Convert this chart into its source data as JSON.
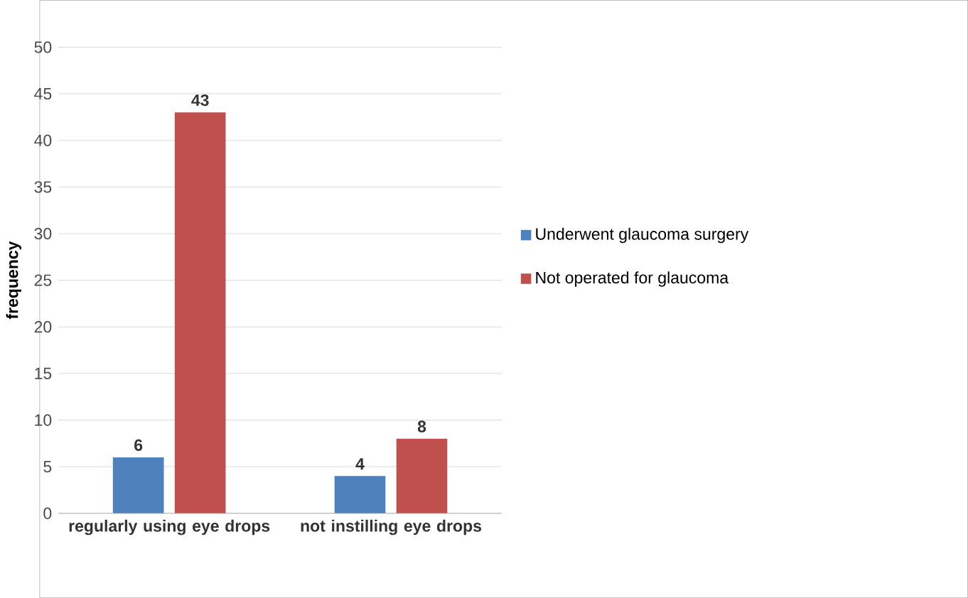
{
  "chart_data": {
    "type": "bar",
    "ylabel": "frequency",
    "categories": [
      "regularly using eye drops",
      "not instilling eye drops"
    ],
    "series": [
      {
        "name": "Underwent glaucoma surgery",
        "color": "#4f81bd",
        "values": [
          6,
          4
        ]
      },
      {
        "name": "Not operated for glaucoma",
        "color": "#c0504d",
        "values": [
          43,
          8
        ]
      }
    ],
    "ylim": [
      0,
      50
    ],
    "yticks": [
      0,
      5,
      10,
      15,
      20,
      25,
      30,
      35,
      40,
      45,
      50
    ],
    "grid": "y",
    "legend": "right",
    "data_labels": true
  }
}
